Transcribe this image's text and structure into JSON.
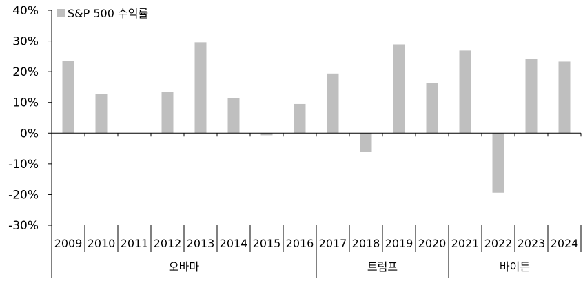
{
  "chart_data": {
    "type": "bar",
    "legend": {
      "label": "S&P 500 수익률",
      "placement": "top-left"
    },
    "categories": [
      "2009",
      "2010",
      "2011",
      "2012",
      "2013",
      "2014",
      "2015",
      "2016",
      "2017",
      "2018",
      "2019",
      "2020",
      "2021",
      "2022",
      "2023",
      "2024"
    ],
    "series": [
      {
        "name": "S&P 500 수익률",
        "values": [
          23.5,
          12.8,
          0.0,
          13.4,
          29.6,
          11.4,
          -0.7,
          9.5,
          19.4,
          -6.2,
          28.9,
          16.3,
          26.9,
          -19.4,
          24.2,
          23.3
        ]
      }
    ],
    "yticks": [
      40,
      30,
      20,
      10,
      0,
      -10,
      -20,
      -30
    ],
    "ytick_labels": [
      "40%",
      "30%",
      "20%",
      "10%",
      "0%",
      "-10%",
      "-20%",
      "-30%"
    ],
    "ylim": [
      -30,
      40
    ],
    "grid": false,
    "groups": [
      {
        "label": "오바마",
        "start": 0,
        "end": 7
      },
      {
        "label": "트럼프",
        "start": 8,
        "end": 11
      },
      {
        "label": "바이든",
        "start": 12,
        "end": 15
      }
    ],
    "colors": {
      "bar": "#bfbfbf",
      "axis": "#000000"
    }
  }
}
